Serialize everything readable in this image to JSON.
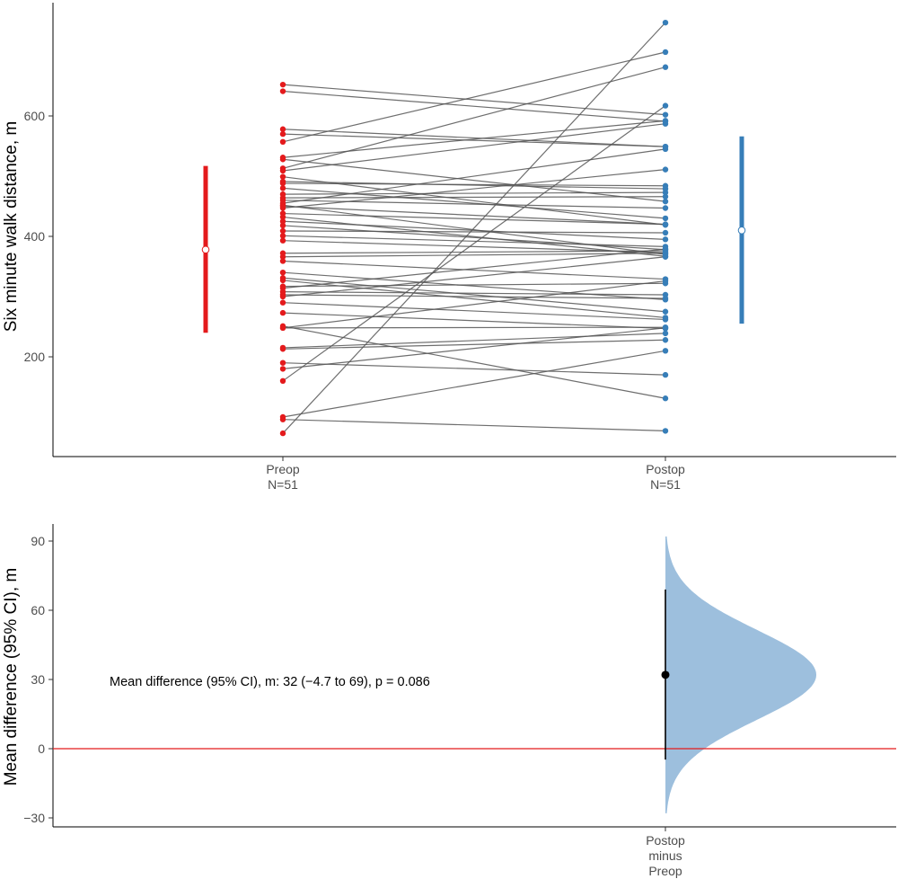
{
  "chart_data": [
    {
      "type": "scatter",
      "subtype": "paired-dot",
      "ylabel": "Six minute walk distance, m",
      "ylim": [
        60,
        760
      ],
      "yticks": [
        "200",
        "400",
        "600"
      ],
      "grid": false,
      "categories": [
        {
          "label": "Preop",
          "n_label": "N=51",
          "color": "#e41a1c"
        },
        {
          "label": "Postop",
          "n_label": "N=51",
          "color": "#377eb8"
        }
      ],
      "summary": [
        {
          "group": "Preop",
          "mean": 378,
          "low": 240,
          "high": 517
        },
        {
          "group": "Postop",
          "mean": 410,
          "low": 255,
          "high": 566
        }
      ],
      "pairs": [
        [
          652,
          602
        ],
        [
          641,
          591
        ],
        [
          578,
          549
        ],
        [
          570,
          549
        ],
        [
          557,
          706
        ],
        [
          531,
          592
        ],
        [
          528,
          458
        ],
        [
          513,
          681
        ],
        [
          509,
          587
        ],
        [
          499,
          419
        ],
        [
          491,
          479
        ],
        [
          488,
          484
        ],
        [
          470,
          473
        ],
        [
          464,
          466
        ],
        [
          460,
          447
        ],
        [
          452,
          370
        ],
        [
          450,
          420
        ],
        [
          447,
          511
        ],
        [
          438,
          420
        ],
        [
          425,
          395
        ],
        [
          418,
          378
        ],
        [
          409,
          406
        ],
        [
          401,
          383
        ],
        [
          393,
          373
        ],
        [
          372,
          376
        ],
        [
          366,
          372
        ],
        [
          359,
          329
        ],
        [
          331,
          275
        ],
        [
          327,
          265
        ],
        [
          317,
          322
        ],
        [
          314,
          379
        ],
        [
          308,
          303
        ],
        [
          303,
          297
        ],
        [
          300,
          366
        ],
        [
          290,
          262
        ],
        [
          273,
          247
        ],
        [
          248,
          326
        ],
        [
          248,
          249
        ],
        [
          215,
          239
        ],
        [
          213,
          228
        ],
        [
          190,
          170
        ],
        [
          180,
          248
        ],
        [
          160,
          617
        ],
        [
          100,
          210
        ],
        [
          96,
          77
        ],
        [
          73,
          755
        ],
        [
          455,
          545
        ],
        [
          432,
          367
        ],
        [
          340,
          295
        ],
        [
          251,
          131
        ],
        [
          480,
          430
        ]
      ]
    },
    {
      "type": "area",
      "subtype": "estimation-distribution",
      "ylabel": "Mean difference (95% CI), m",
      "ylim": [
        -33,
        95
      ],
      "yticks": [
        "−30",
        "0",
        "30",
        "60",
        "90"
      ],
      "grid": false,
      "x_label_lines": [
        "Postop",
        "minus",
        "Preop"
      ],
      "mean_difference": 32,
      "ci": [
        -4.7,
        69
      ],
      "p_value": 0.086,
      "dist_sd": 19.5,
      "dist_range": [
        -28,
        92
      ],
      "zero_line_color": "#e41a1c",
      "fill_color": "#9dbfdd",
      "annotation": "Mean difference (95% CI), m: 32 (−4.7 to 69), p = 0.086"
    }
  ]
}
